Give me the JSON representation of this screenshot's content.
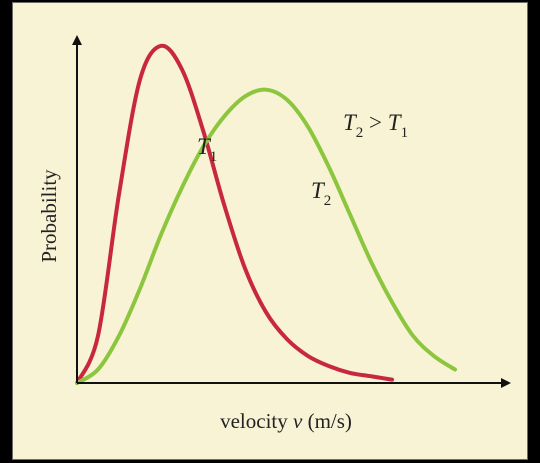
{
  "chart_data": {
    "type": "line",
    "title": "",
    "xlabel": "velocity ",
    "xlabel_var": "v",
    "xlabel_unit": " (m/s)",
    "ylabel": "Probability",
    "annotation": {
      "lhs_base": "T",
      "lhs_sub": "2",
      "op": " > ",
      "rhs_base": "T",
      "rhs_sub": "1"
    },
    "axes": {
      "ticks": false,
      "grid": false,
      "arrowheads": true
    },
    "xlim": [
      0,
      10
    ],
    "ylim": [
      0,
      1.05
    ],
    "series": [
      {
        "name": "T1",
        "label_base": "T",
        "label_sub": "1",
        "color": "#c8283e",
        "x": [
          0,
          0.5,
          1.0,
          1.5,
          2.0,
          2.5,
          3.0,
          3.5,
          4.0,
          4.5,
          5.0,
          5.5,
          6.0,
          6.5,
          7.0,
          7.5
        ],
        "y": [
          0,
          0.14,
          0.56,
          0.9,
          1.0,
          0.93,
          0.75,
          0.53,
          0.34,
          0.21,
          0.13,
          0.08,
          0.05,
          0.03,
          0.02,
          0.01
        ]
      },
      {
        "name": "T2",
        "label_base": "T",
        "label_sub": "2",
        "color": "#8cc63f",
        "x": [
          0,
          0.5,
          1.0,
          1.5,
          2.0,
          2.5,
          3.0,
          3.5,
          4.0,
          4.5,
          5.0,
          5.5,
          6.0,
          6.5,
          7.0,
          7.5,
          8.0,
          8.5,
          9.0
        ],
        "y": [
          0,
          0.04,
          0.14,
          0.28,
          0.44,
          0.58,
          0.7,
          0.79,
          0.85,
          0.87,
          0.84,
          0.76,
          0.64,
          0.5,
          0.36,
          0.24,
          0.14,
          0.08,
          0.04
        ]
      }
    ]
  }
}
